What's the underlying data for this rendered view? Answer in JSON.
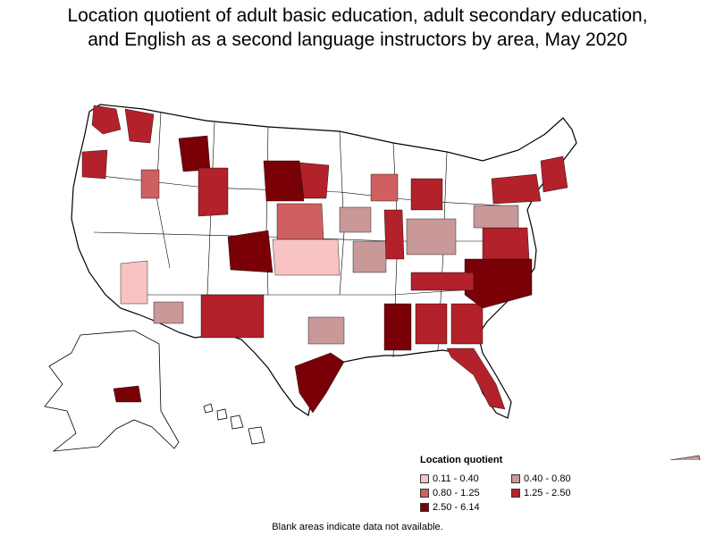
{
  "title": {
    "line1": "Location quotient of adult basic education, adult secondary education,",
    "line2": "and English as a second language instructors by area, May 2020"
  },
  "legend": {
    "title": "Location quotient",
    "items": [
      {
        "label": "0.11 - 0.40",
        "color": "#f7c3c3"
      },
      {
        "label": "0.40 - 0.80",
        "color": "#c99898"
      },
      {
        "label": "0.80 - 1.25",
        "color": "#d06060"
      },
      {
        "label": "1.25 - 2.50",
        "color": "#b3212a"
      },
      {
        "label": "2.50 - 6.14",
        "color": "#7a0008"
      }
    ]
  },
  "note": "Blank areas indicate data not available.",
  "colors": {
    "border": "#000000",
    "no_data": "#ffffff"
  }
}
